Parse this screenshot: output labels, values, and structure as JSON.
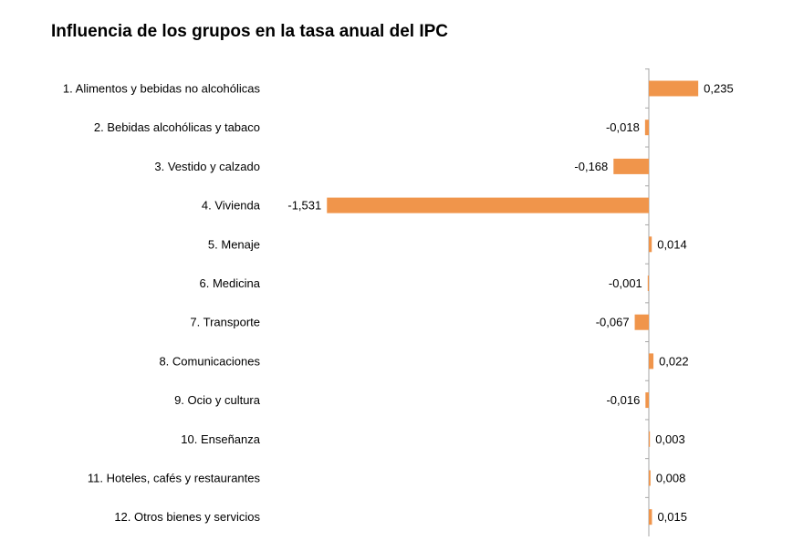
{
  "chart_data": {
    "type": "bar",
    "orientation": "horizontal",
    "title": "Influencia de los grupos en la tasa anual del IPC",
    "xlabel": "",
    "ylabel": "",
    "categories": [
      "1. Alimentos y bebidas no alcohólicas",
      "2. Bebidas alcohólicas y tabaco",
      "3. Vestido y calzado",
      "4. Vivienda",
      "5. Menaje",
      "6. Medicina",
      "7. Transporte",
      "8. Comunicaciones",
      "9. Ocio y cultura",
      "10. Enseñanza",
      "11. Hoteles, cafés y restaurantes",
      "12. Otros bienes y servicios"
    ],
    "values": [
      0.235,
      -0.018,
      -0.168,
      -1.531,
      0.014,
      -0.001,
      -0.067,
      0.022,
      -0.016,
      0.003,
      0.008,
      0.015
    ],
    "value_labels": [
      "0,235",
      "-0,018",
      "-0,168",
      "-1,531",
      "0,014",
      "-0,001",
      "-0,067",
      "0,022",
      "-0,016",
      "0,003",
      "0,008",
      "0,015"
    ],
    "grid": false,
    "legend": "none",
    "bar_color": "#f0954b",
    "axis_color": "#a6a6a6"
  }
}
